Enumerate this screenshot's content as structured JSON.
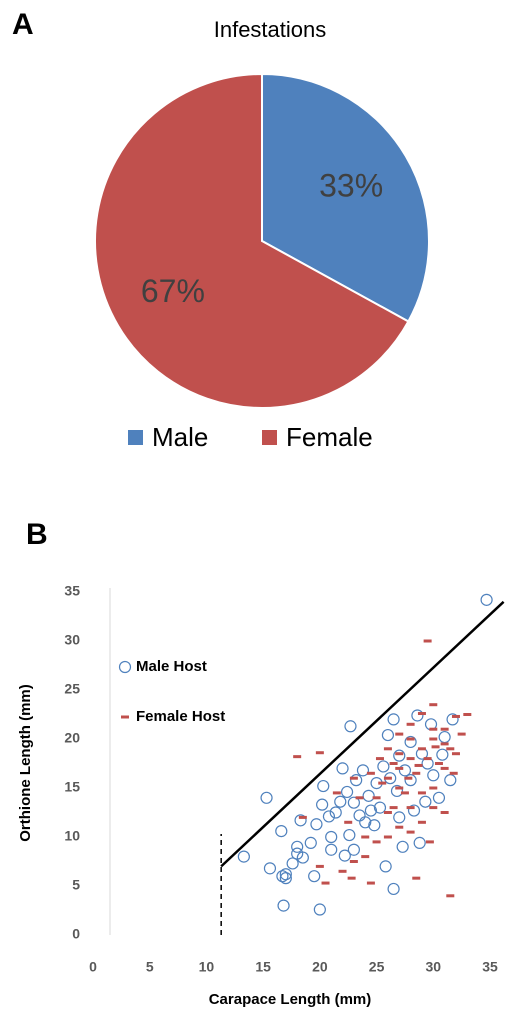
{
  "chart_data": [
    {
      "type": "pie",
      "panel": "A",
      "title": "Infestations",
      "categories": [
        "Male",
        "Female"
      ],
      "values": [
        33,
        67
      ],
      "value_labels": [
        "33%",
        "67%"
      ],
      "colors": [
        "#4f81bd",
        "#c0504d"
      ],
      "legend": "bottom"
    },
    {
      "type": "scatter",
      "panel": "B",
      "x_label": "Carapace Length (mm)",
      "y_label": "Orthione Length (mm)",
      "xlim": [
        0,
        35
      ],
      "ylim": [
        0,
        35
      ],
      "xticks": [
        0,
        5,
        10,
        15,
        20,
        25,
        30,
        35
      ],
      "yticks": [
        0,
        5,
        10,
        15,
        20,
        25,
        30,
        35
      ],
      "grid": false,
      "legend": "upper left",
      "series": [
        {
          "name": "Male Host",
          "color": "#4f81bd",
          "marker": "circle",
          "x": [
            34.7,
            13.3,
            15.3,
            15.6,
            16.6,
            16.7,
            16.8,
            17,
            17,
            17.6,
            18,
            18,
            18.3,
            18.5,
            19.2,
            19.5,
            19.7,
            20,
            20.2,
            20.3,
            20.8,
            21,
            21,
            21.4,
            21.8,
            22,
            22.2,
            22.4,
            22.6,
            22.7,
            23,
            23,
            23.2,
            23.5,
            23.8,
            24,
            24.3,
            24.5,
            24.8,
            25,
            25.3,
            25.6,
            25.8,
            26,
            26.2,
            26.5,
            26.5,
            26.8,
            27,
            27.3,
            27.5,
            28,
            28.3,
            28.6,
            28.8,
            29,
            29.3,
            29.8,
            30,
            30.5,
            31,
            31.5,
            31.7,
            27,
            28,
            29.5,
            30.8
          ],
          "values": [
            34.2,
            8,
            14,
            6.8,
            10.6,
            6,
            3,
            5.8,
            6.2,
            7.3,
            9,
            8.3,
            11.7,
            7.9,
            9.4,
            6,
            11.3,
            2.6,
            13.3,
            15.2,
            12.1,
            10,
            8.7,
            12.5,
            13.6,
            17,
            8.1,
            14.6,
            10.2,
            21.3,
            8.7,
            13.5,
            15.8,
            12.2,
            16.8,
            11.5,
            14.2,
            12.7,
            11.2,
            15.5,
            13,
            17.2,
            7,
            20.4,
            16,
            4.7,
            22,
            14.7,
            18.3,
            9,
            16.8,
            15.8,
            12.7,
            22.4,
            9.4,
            18.5,
            13.6,
            21.5,
            16.3,
            14,
            20.2,
            15.8,
            22,
            12,
            19.7,
            17.5,
            18.4
          ]
        },
        {
          "name": "Female Host",
          "color": "#c0504d",
          "marker": "dash",
          "x": [
            20,
            18,
            18.5,
            20,
            22,
            22.8,
            24.5,
            20.5,
            29.5,
            28.5,
            31.5,
            23,
            24,
            27,
            26,
            25,
            26,
            27,
            28,
            29,
            30,
            31,
            32,
            31,
            30,
            29,
            28,
            27,
            26,
            27,
            28,
            29,
            30,
            31,
            32,
            26.5,
            27.5,
            28.5,
            29.5,
            30.5,
            31.5,
            25.5,
            24.5,
            23.5,
            22.5,
            24,
            25,
            29,
            30,
            28,
            26,
            27,
            28,
            30,
            29.7,
            32.5,
            31.8,
            26.5,
            25.3,
            27.8,
            30.2,
            28.7,
            21.5,
            23,
            33,
            31
          ],
          "values": [
            18.6,
            18.2,
            12,
            7,
            6.5,
            5.8,
            5.3,
            5.3,
            30,
            5.8,
            4,
            7.5,
            8,
            11,
            10,
            14,
            16,
            17,
            18,
            19,
            20,
            21,
            22.3,
            17,
            15,
            14.5,
            13,
            15,
            19,
            20.5,
            21.5,
            22.6,
            23.5,
            19.5,
            18.5,
            17.5,
            14.5,
            16.5,
            18,
            17.5,
            19,
            15.5,
            16.5,
            14,
            11.5,
            10,
            9.5,
            11.5,
            13,
            10.5,
            12.5,
            18.5,
            20,
            21,
            9.5,
            20.5,
            16.5,
            13,
            18,
            16,
            19.2,
            17.3,
            14.5,
            16,
            22.5,
            12.5
          ]
        }
      ],
      "lines": [
        {
          "x": [
            11.3,
            36.2
          ],
          "y": [
            7,
            34
          ],
          "style": "solid",
          "color": "#000000"
        },
        {
          "x": [
            11.3,
            11.3
          ],
          "y": [
            0,
            10.3
          ],
          "style": "dashed",
          "color": "#000000"
        }
      ]
    }
  ]
}
